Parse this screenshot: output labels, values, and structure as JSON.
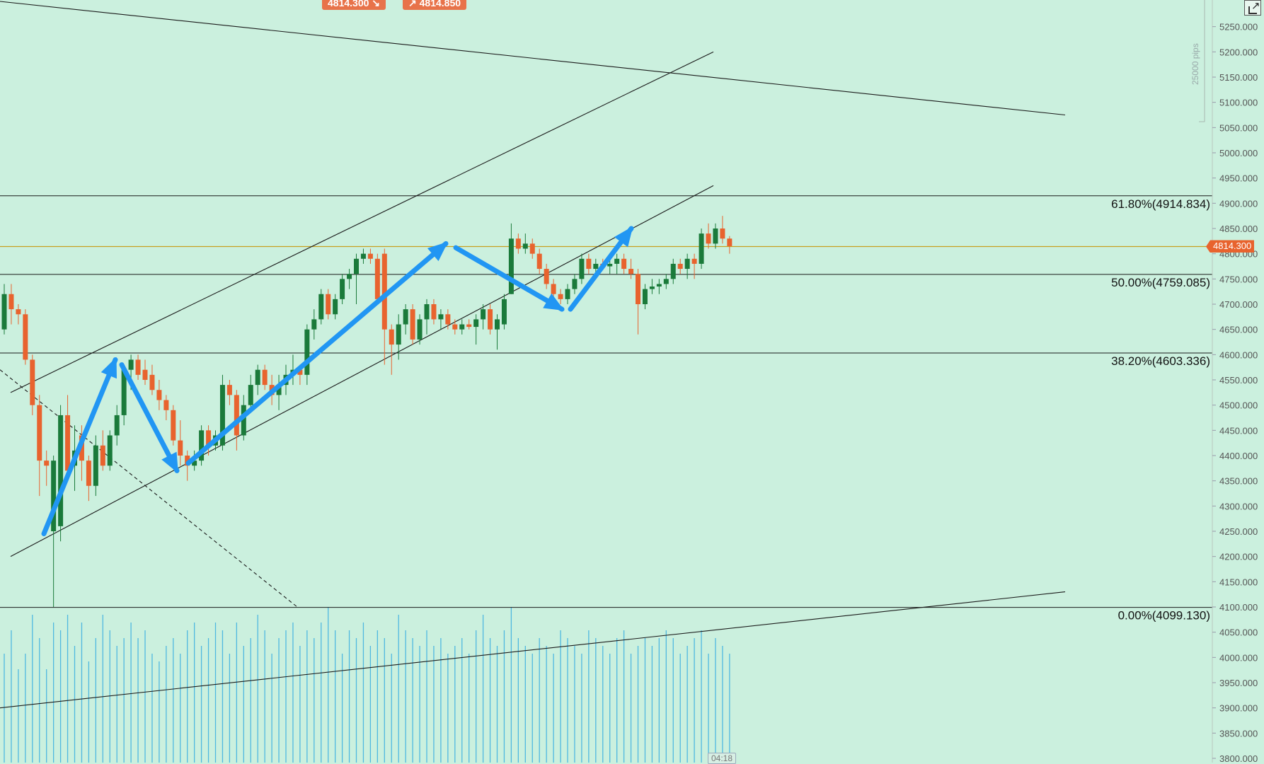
{
  "toolbar": {
    "sell_price": "4814.300",
    "buy_price": "4814.850"
  },
  "pips_label": "25000 pips",
  "current_price_label": "4814.300",
  "time_label": "04:18",
  "colors": {
    "background": "#cbf0de",
    "up_candle": "#1a7a3a",
    "down_candle": "#e8632e",
    "arrow": "#2196f3",
    "volume": "#4fb8e0",
    "price_line": "#c8a020"
  },
  "chart_data": {
    "type": "candlestick",
    "ylim": [
      3800,
      5300
    ],
    "y_ticks": [
      "3800.000",
      "3850.000",
      "3900.000",
      "3950.000",
      "4000.000",
      "4050.000",
      "4100.000",
      "4150.000",
      "4200.000",
      "4250.000",
      "4300.000",
      "4350.000",
      "4400.000",
      "4450.000",
      "4500.000",
      "4550.000",
      "4600.000",
      "4650.000",
      "4700.000",
      "4750.000",
      "4800.000",
      "4850.000",
      "4900.000",
      "4950.000",
      "5000.000",
      "5050.000",
      "5100.000",
      "5150.000",
      "5200.000",
      "5250.000"
    ],
    "current_price": 4814.3,
    "fib_levels": [
      {
        "label": "61.80%(4914.834)",
        "price": 4914.834
      },
      {
        "label": "50.00%(4759.085)",
        "price": 4759.085
      },
      {
        "label": "38.20%(4603.336)",
        "price": 4603.336
      },
      {
        "label": "0.00%(4099.130)",
        "price": 4099.13
      }
    ],
    "candles": [
      {
        "i": 0,
        "o": 4650,
        "h": 4740,
        "l": 4640,
        "c": 4720
      },
      {
        "i": 1,
        "o": 4720,
        "h": 4740,
        "l": 4660,
        "c": 4690
      },
      {
        "i": 2,
        "o": 4690,
        "h": 4700,
        "l": 4660,
        "c": 4680
      },
      {
        "i": 3,
        "o": 4680,
        "h": 4690,
        "l": 4580,
        "c": 4590
      },
      {
        "i": 4,
        "o": 4590,
        "h": 4600,
        "l": 4480,
        "c": 4500
      },
      {
        "i": 5,
        "o": 4500,
        "h": 4520,
        "l": 4320,
        "c": 4390
      },
      {
        "i": 6,
        "o": 4390,
        "h": 4410,
        "l": 4340,
        "c": 4380
      },
      {
        "i": 7,
        "o": 4250,
        "h": 4400,
        "l": 4100,
        "c": 4390
      },
      {
        "i": 8,
        "o": 4260,
        "h": 4500,
        "l": 4230,
        "c": 4480
      },
      {
        "i": 9,
        "o": 4480,
        "h": 4520,
        "l": 4350,
        "c": 4370
      },
      {
        "i": 10,
        "o": 4380,
        "h": 4460,
        "l": 4330,
        "c": 4410
      },
      {
        "i": 11,
        "o": 4440,
        "h": 4460,
        "l": 4350,
        "c": 4390
      },
      {
        "i": 12,
        "o": 4390,
        "h": 4400,
        "l": 4310,
        "c": 4340
      },
      {
        "i": 13,
        "o": 4340,
        "h": 4440,
        "l": 4320,
        "c": 4420
      },
      {
        "i": 14,
        "o": 4420,
        "h": 4450,
        "l": 4370,
        "c": 4380
      },
      {
        "i": 15,
        "o": 4380,
        "h": 4450,
        "l": 4370,
        "c": 4440
      },
      {
        "i": 16,
        "o": 4440,
        "h": 4500,
        "l": 4420,
        "c": 4480
      },
      {
        "i": 17,
        "o": 4480,
        "h": 4580,
        "l": 4460,
        "c": 4570
      },
      {
        "i": 18,
        "o": 4570,
        "h": 4600,
        "l": 4530,
        "c": 4590
      },
      {
        "i": 19,
        "o": 4590,
        "h": 4600,
        "l": 4550,
        "c": 4560
      },
      {
        "i": 20,
        "o": 4570,
        "h": 4590,
        "l": 4540,
        "c": 4550
      },
      {
        "i": 21,
        "o": 4560,
        "h": 4580,
        "l": 4520,
        "c": 4530
      },
      {
        "i": 22,
        "o": 4530,
        "h": 4550,
        "l": 4490,
        "c": 4510
      },
      {
        "i": 23,
        "o": 4510,
        "h": 4520,
        "l": 4470,
        "c": 4490
      },
      {
        "i": 24,
        "o": 4490,
        "h": 4500,
        "l": 4420,
        "c": 4430
      },
      {
        "i": 25,
        "o": 4430,
        "h": 4470,
        "l": 4380,
        "c": 4400
      },
      {
        "i": 26,
        "o": 4400,
        "h": 4410,
        "l": 4350,
        "c": 4380
      },
      {
        "i": 27,
        "o": 4380,
        "h": 4410,
        "l": 4370,
        "c": 4390
      },
      {
        "i": 28,
        "o": 4390,
        "h": 4460,
        "l": 4380,
        "c": 4450
      },
      {
        "i": 29,
        "o": 4450,
        "h": 4460,
        "l": 4400,
        "c": 4420
      },
      {
        "i": 30,
        "o": 4420,
        "h": 4450,
        "l": 4410,
        "c": 4440
      },
      {
        "i": 31,
        "o": 4420,
        "h": 4560,
        "l": 4410,
        "c": 4540
      },
      {
        "i": 32,
        "o": 4540,
        "h": 4550,
        "l": 4500,
        "c": 4520
      },
      {
        "i": 33,
        "o": 4520,
        "h": 4530,
        "l": 4410,
        "c": 4440
      },
      {
        "i": 34,
        "o": 4440,
        "h": 4520,
        "l": 4430,
        "c": 4500
      },
      {
        "i": 35,
        "o": 4500,
        "h": 4560,
        "l": 4490,
        "c": 4540
      },
      {
        "i": 36,
        "o": 4540,
        "h": 4580,
        "l": 4520,
        "c": 4570
      },
      {
        "i": 37,
        "o": 4570,
        "h": 4580,
        "l": 4530,
        "c": 4540
      },
      {
        "i": 38,
        "o": 4540,
        "h": 4560,
        "l": 4500,
        "c": 4520
      },
      {
        "i": 39,
        "o": 4520,
        "h": 4560,
        "l": 4490,
        "c": 4540
      },
      {
        "i": 40,
        "o": 4540,
        "h": 4580,
        "l": 4520,
        "c": 4560
      },
      {
        "i": 41,
        "o": 4560,
        "h": 4600,
        "l": 4540,
        "c": 4570
      },
      {
        "i": 42,
        "o": 4570,
        "h": 4580,
        "l": 4540,
        "c": 4560
      },
      {
        "i": 43,
        "o": 4560,
        "h": 4660,
        "l": 4540,
        "c": 4650
      },
      {
        "i": 44,
        "o": 4650,
        "h": 4690,
        "l": 4630,
        "c": 4670
      },
      {
        "i": 45,
        "o": 4670,
        "h": 4730,
        "l": 4660,
        "c": 4720
      },
      {
        "i": 46,
        "o": 4720,
        "h": 4730,
        "l": 4670,
        "c": 4680
      },
      {
        "i": 47,
        "o": 4680,
        "h": 4720,
        "l": 4670,
        "c": 4710
      },
      {
        "i": 48,
        "o": 4710,
        "h": 4760,
        "l": 4700,
        "c": 4750
      },
      {
        "i": 49,
        "o": 4750,
        "h": 4770,
        "l": 4730,
        "c": 4760
      },
      {
        "i": 50,
        "o": 4760,
        "h": 4800,
        "l": 4700,
        "c": 4790
      },
      {
        "i": 51,
        "o": 4790,
        "h": 4810,
        "l": 4780,
        "c": 4800
      },
      {
        "i": 52,
        "o": 4800,
        "h": 4810,
        "l": 4780,
        "c": 4790
      },
      {
        "i": 53,
        "o": 4790,
        "h": 4800,
        "l": 4700,
        "c": 4710
      },
      {
        "i": 54,
        "o": 4800,
        "h": 4810,
        "l": 4580,
        "c": 4650
      },
      {
        "i": 55,
        "o": 4650,
        "h": 4660,
        "l": 4560,
        "c": 4620
      },
      {
        "i": 56,
        "o": 4620,
        "h": 4680,
        "l": 4590,
        "c": 4660
      },
      {
        "i": 57,
        "o": 4660,
        "h": 4700,
        "l": 4640,
        "c": 4690
      },
      {
        "i": 58,
        "o": 4690,
        "h": 4700,
        "l": 4620,
        "c": 4630
      },
      {
        "i": 59,
        "o": 4630,
        "h": 4680,
        "l": 4620,
        "c": 4670
      },
      {
        "i": 60,
        "o": 4670,
        "h": 4710,
        "l": 4640,
        "c": 4700
      },
      {
        "i": 61,
        "o": 4700,
        "h": 4710,
        "l": 4660,
        "c": 4670
      },
      {
        "i": 62,
        "o": 4670,
        "h": 4690,
        "l": 4650,
        "c": 4680
      },
      {
        "i": 63,
        "o": 4680,
        "h": 4690,
        "l": 4650,
        "c": 4660
      },
      {
        "i": 64,
        "o": 4660,
        "h": 4670,
        "l": 4640,
        "c": 4650
      },
      {
        "i": 65,
        "o": 4650,
        "h": 4670,
        "l": 4640,
        "c": 4660
      },
      {
        "i": 66,
        "o": 4660,
        "h": 4670,
        "l": 4650,
        "c": 4655
      },
      {
        "i": 67,
        "o": 4655,
        "h": 4680,
        "l": 4620,
        "c": 4670
      },
      {
        "i": 68,
        "o": 4670,
        "h": 4700,
        "l": 4650,
        "c": 4690
      },
      {
        "i": 69,
        "o": 4690,
        "h": 4700,
        "l": 4640,
        "c": 4650
      },
      {
        "i": 70,
        "o": 4650,
        "h": 4680,
        "l": 4610,
        "c": 4670
      },
      {
        "i": 71,
        "o": 4660,
        "h": 4720,
        "l": 4650,
        "c": 4710
      },
      {
        "i": 72,
        "o": 4720,
        "h": 4860,
        "l": 4720,
        "c": 4830
      },
      {
        "i": 73,
        "o": 4830,
        "h": 4840,
        "l": 4800,
        "c": 4810
      },
      {
        "i": 74,
        "o": 4810,
        "h": 4840,
        "l": 4800,
        "c": 4820
      },
      {
        "i": 75,
        "o": 4820,
        "h": 4830,
        "l": 4790,
        "c": 4800
      },
      {
        "i": 76,
        "o": 4800,
        "h": 4810,
        "l": 4760,
        "c": 4770
      },
      {
        "i": 77,
        "o": 4770,
        "h": 4780,
        "l": 4730,
        "c": 4740
      },
      {
        "i": 78,
        "o": 4740,
        "h": 4750,
        "l": 4710,
        "c": 4720
      },
      {
        "i": 79,
        "o": 4720,
        "h": 4730,
        "l": 4700,
        "c": 4710
      },
      {
        "i": 80,
        "o": 4710,
        "h": 4740,
        "l": 4700,
        "c": 4730
      },
      {
        "i": 81,
        "o": 4730,
        "h": 4760,
        "l": 4720,
        "c": 4750
      },
      {
        "i": 82,
        "o": 4750,
        "h": 4800,
        "l": 4740,
        "c": 4790
      },
      {
        "i": 83,
        "o": 4790,
        "h": 4800,
        "l": 4760,
        "c": 4770
      },
      {
        "i": 84,
        "o": 4770,
        "h": 4790,
        "l": 4750,
        "c": 4780
      },
      {
        "i": 85,
        "o": 4780,
        "h": 4790,
        "l": 4770,
        "c": 4775
      },
      {
        "i": 86,
        "o": 4775,
        "h": 4790,
        "l": 4760,
        "c": 4780
      },
      {
        "i": 87,
        "o": 4780,
        "h": 4800,
        "l": 4760,
        "c": 4790
      },
      {
        "i": 88,
        "o": 4790,
        "h": 4800,
        "l": 4760,
        "c": 4770
      },
      {
        "i": 89,
        "o": 4770,
        "h": 4790,
        "l": 4750,
        "c": 4760
      },
      {
        "i": 90,
        "o": 4760,
        "h": 4770,
        "l": 4640,
        "c": 4700
      },
      {
        "i": 91,
        "o": 4700,
        "h": 4740,
        "l": 4690,
        "c": 4730
      },
      {
        "i": 92,
        "o": 4730,
        "h": 4750,
        "l": 4720,
        "c": 4735
      },
      {
        "i": 93,
        "o": 4735,
        "h": 4750,
        "l": 4720,
        "c": 4740
      },
      {
        "i": 94,
        "o": 4740,
        "h": 4760,
        "l": 4730,
        "c": 4750
      },
      {
        "i": 95,
        "o": 4750,
        "h": 4790,
        "l": 4740,
        "c": 4780
      },
      {
        "i": 96,
        "o": 4780,
        "h": 4790,
        "l": 4760,
        "c": 4770
      },
      {
        "i": 97,
        "o": 4770,
        "h": 4800,
        "l": 4750,
        "c": 4790
      },
      {
        "i": 98,
        "o": 4790,
        "h": 4800,
        "l": 4750,
        "c": 4780
      },
      {
        "i": 99,
        "o": 4780,
        "h": 4850,
        "l": 4770,
        "c": 4840
      },
      {
        "i": 100,
        "o": 4840,
        "h": 4860,
        "l": 4810,
        "c": 4820
      },
      {
        "i": 101,
        "o": 4820,
        "h": 4860,
        "l": 4810,
        "c": 4850
      },
      {
        "i": 102,
        "o": 4850,
        "h": 4875,
        "l": 4820,
        "c": 4830
      },
      {
        "i": 103,
        "o": 4830,
        "h": 4835,
        "l": 4800,
        "c": 4815
      }
    ],
    "volume": [
      70,
      85,
      60,
      70,
      95,
      80,
      60,
      90,
      85,
      95,
      75,
      90,
      65,
      80,
      95,
      85,
      75,
      80,
      90,
      80,
      85,
      70,
      65,
      75,
      80,
      70,
      85,
      90,
      75,
      80,
      90,
      85,
      70,
      90,
      75,
      80,
      95,
      85,
      70,
      80,
      85,
      90,
      75,
      85,
      80,
      90,
      100,
      85,
      70,
      85,
      80,
      90,
      75,
      85,
      80,
      70,
      95,
      85,
      80,
      75,
      85,
      75,
      80,
      70,
      75,
      80,
      70,
      85,
      95,
      80,
      75,
      85,
      100,
      80,
      75,
      70,
      80,
      75,
      70,
      85,
      80,
      75,
      70,
      85,
      80,
      75,
      70,
      80,
      85,
      70,
      75,
      80,
      75,
      80,
      85,
      80,
      70,
      75,
      80,
      85,
      70,
      80,
      75,
      70
    ],
    "trendlines": [
      {
        "from": [
          0,
          5300
        ],
        "to": [
          1505,
          5075
        ],
        "style": "solid"
      },
      {
        "from": [
          15,
          4525
        ],
        "to": [
          1008,
          5200
        ],
        "style": "solid"
      },
      {
        "from": [
          15,
          4200
        ],
        "to": [
          1008,
          4935
        ],
        "style": "solid"
      },
      {
        "from": [
          0,
          3900
        ],
        "to": [
          1505,
          4130
        ],
        "style": "solid"
      },
      {
        "from": [
          0,
          4570
        ],
        "to": [
          420,
          4100
        ],
        "style": "dashed"
      }
    ],
    "arrows": [
      {
        "from": [
          62,
          4245
        ],
        "to": [
          163,
          4590
        ]
      },
      {
        "from": [
          172,
          4580
        ],
        "to": [
          250,
          4370
        ]
      },
      {
        "from": [
          266,
          4385
        ],
        "to": [
          630,
          4820
        ]
      },
      {
        "from": [
          644,
          4812
        ],
        "to": [
          794,
          4690
        ]
      },
      {
        "from": [
          806,
          4690
        ],
        "to": [
          892,
          4850
        ]
      }
    ]
  }
}
